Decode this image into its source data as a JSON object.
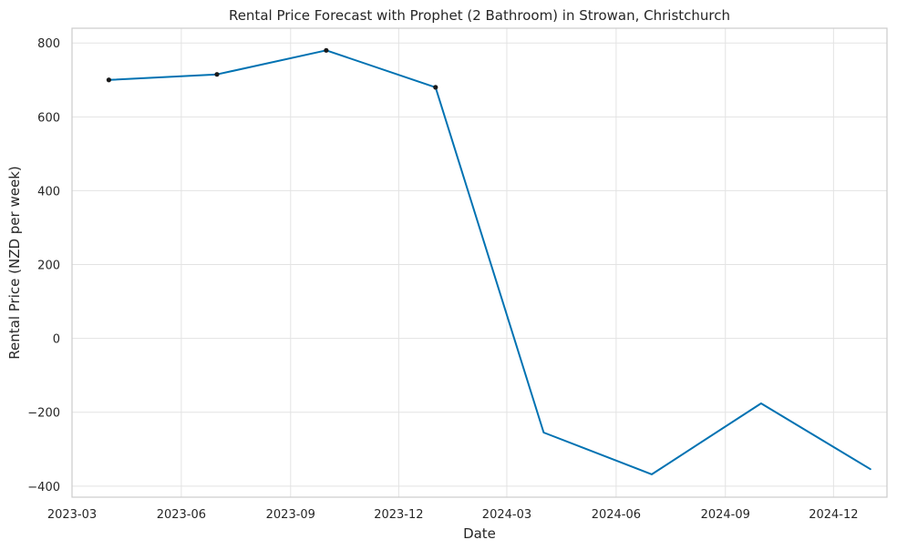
{
  "chart_data": {
    "type": "line",
    "title": "Rental Price Forecast with Prophet (2 Bathroom) in Strowan, Christchurch",
    "xlabel": "Date",
    "ylabel": "Rental Price (NZD per week)",
    "x_tick_labels": [
      "2023-03",
      "2023-06",
      "2023-09",
      "2023-12",
      "2024-03",
      "2024-06",
      "2024-09",
      "2024-12"
    ],
    "x_ticks": [
      "2023-03-01",
      "2023-06-01",
      "2023-09-01",
      "2023-12-01",
      "2024-03-01",
      "2024-06-01",
      "2024-09-01",
      "2024-12-01"
    ],
    "y_ticks": [
      -400,
      -200,
      0,
      200,
      400,
      600,
      800
    ],
    "y_tick_labels": [
      "−400",
      "−200",
      "0",
      "200",
      "400",
      "600",
      "800"
    ],
    "xlim": [
      "2023-03-01",
      "2025-01-15"
    ],
    "ylim": [
      -430,
      840
    ],
    "grid": true,
    "series": [
      {
        "color": "#0072B2",
        "x": [
          "2023-04-01",
          "2023-07-01",
          "2023-10-01",
          "2024-01-01",
          "2024-04-01",
          "2024-07-01",
          "2024-10-01",
          "2025-01-01"
        ],
        "y": [
          700,
          715,
          780,
          680,
          -255,
          -368,
          -176,
          -354
        ]
      }
    ],
    "observed_points": {
      "color": "#1a1a1a",
      "x": [
        "2023-04-01",
        "2023-07-01",
        "2023-10-01",
        "2024-01-01"
      ],
      "y": [
        700,
        715,
        780,
        680
      ]
    }
  }
}
